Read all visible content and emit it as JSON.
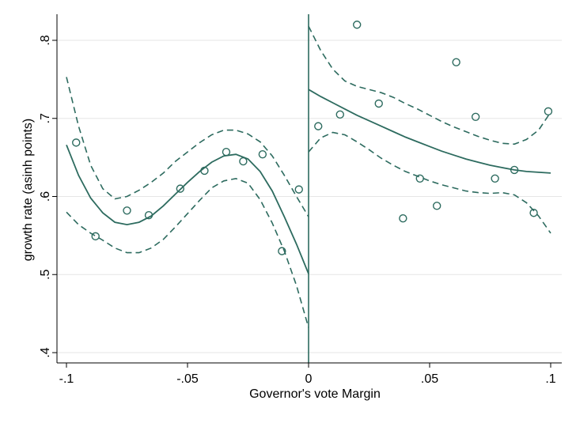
{
  "chart_data": {
    "type": "scatter",
    "title": "",
    "xlabel": "Governor's vote Margin",
    "ylabel": "growth rate (asinh points)",
    "xlim": [
      -0.1,
      0.1
    ],
    "ylim": [
      0.4,
      0.8
    ],
    "x_ticks": [
      {
        "value": -0.1,
        "label": "-.1"
      },
      {
        "value": -0.05,
        "label": "-.05"
      },
      {
        "value": 0,
        "label": "0"
      },
      {
        "value": 0.05,
        "label": ".05"
      },
      {
        "value": 0.1,
        "label": ".1"
      }
    ],
    "y_ticks": [
      {
        "value": 0.4,
        "label": ".4"
      },
      {
        "value": 0.5,
        "label": ".5"
      },
      {
        "value": 0.6,
        "label": ".6"
      },
      {
        "value": 0.7,
        "label": ".7"
      },
      {
        "value": 0.8,
        "label": ".8"
      }
    ],
    "grid": "horizontal",
    "legend": "none",
    "cutoff": 0,
    "colors": {
      "series": "#2d6b5f",
      "grid": "#e6e6e6",
      "axis": "#000000"
    },
    "scatter_points": [
      {
        "x": -0.096,
        "y": 0.669
      },
      {
        "x": -0.088,
        "y": 0.549
      },
      {
        "x": -0.075,
        "y": 0.582
      },
      {
        "x": -0.066,
        "y": 0.576
      },
      {
        "x": -0.053,
        "y": 0.61
      },
      {
        "x": -0.043,
        "y": 0.633
      },
      {
        "x": -0.034,
        "y": 0.657
      },
      {
        "x": -0.027,
        "y": 0.645
      },
      {
        "x": -0.019,
        "y": 0.654
      },
      {
        "x": -0.011,
        "y": 0.53
      },
      {
        "x": -0.004,
        "y": 0.609
      },
      {
        "x": 0.004,
        "y": 0.69
      },
      {
        "x": 0.013,
        "y": 0.705
      },
      {
        "x": 0.02,
        "y": 0.82
      },
      {
        "x": 0.029,
        "y": 0.719
      },
      {
        "x": 0.039,
        "y": 0.572
      },
      {
        "x": 0.046,
        "y": 0.623
      },
      {
        "x": 0.053,
        "y": 0.588
      },
      {
        "x": 0.061,
        "y": 0.772
      },
      {
        "x": 0.069,
        "y": 0.702
      },
      {
        "x": 0.077,
        "y": 0.623
      },
      {
        "x": 0.085,
        "y": 0.634
      },
      {
        "x": 0.093,
        "y": 0.579
      },
      {
        "x": 0.099,
        "y": 0.709
      }
    ],
    "fit_left": {
      "x": [
        -0.1,
        -0.095,
        -0.09,
        -0.085,
        -0.08,
        -0.075,
        -0.07,
        -0.065,
        -0.06,
        -0.055,
        -0.05,
        -0.045,
        -0.04,
        -0.035,
        -0.03,
        -0.025,
        -0.02,
        -0.015,
        -0.01,
        -0.005,
        0
      ],
      "y": [
        0.666,
        0.627,
        0.598,
        0.579,
        0.567,
        0.564,
        0.567,
        0.575,
        0.588,
        0.603,
        0.618,
        0.632,
        0.644,
        0.652,
        0.654,
        0.648,
        0.632,
        0.607,
        0.574,
        0.539,
        0.501
      ],
      "ci_upper": [
        0.753,
        0.69,
        0.64,
        0.61,
        0.597,
        0.6,
        0.608,
        0.618,
        0.63,
        0.645,
        0.657,
        0.669,
        0.679,
        0.685,
        0.685,
        0.68,
        0.67,
        0.652,
        0.627,
        0.6,
        0.574
      ],
      "ci_lower": [
        0.58,
        0.564,
        0.553,
        0.544,
        0.534,
        0.528,
        0.528,
        0.534,
        0.545,
        0.561,
        0.578,
        0.595,
        0.611,
        0.62,
        0.623,
        0.617,
        0.596,
        0.566,
        0.53,
        0.486,
        0.432
      ]
    },
    "fit_right": {
      "x": [
        0,
        0.005,
        0.01,
        0.015,
        0.02,
        0.025,
        0.03,
        0.035,
        0.04,
        0.045,
        0.05,
        0.055,
        0.06,
        0.065,
        0.07,
        0.075,
        0.08,
        0.085,
        0.09,
        0.095,
        0.1
      ],
      "y": [
        0.737,
        0.728,
        0.72,
        0.712,
        0.704,
        0.697,
        0.69,
        0.683,
        0.676,
        0.67,
        0.664,
        0.658,
        0.653,
        0.648,
        0.644,
        0.64,
        0.637,
        0.634,
        0.632,
        0.631,
        0.63
      ],
      "ci_upper": [
        0.818,
        0.787,
        0.763,
        0.748,
        0.741,
        0.737,
        0.733,
        0.727,
        0.719,
        0.712,
        0.704,
        0.696,
        0.689,
        0.683,
        0.677,
        0.672,
        0.668,
        0.667,
        0.673,
        0.685,
        0.708
      ],
      "ci_lower": [
        0.657,
        0.675,
        0.682,
        0.679,
        0.67,
        0.66,
        0.649,
        0.64,
        0.632,
        0.626,
        0.62,
        0.615,
        0.611,
        0.607,
        0.605,
        0.604,
        0.605,
        0.602,
        0.592,
        0.575,
        0.553
      ]
    }
  }
}
